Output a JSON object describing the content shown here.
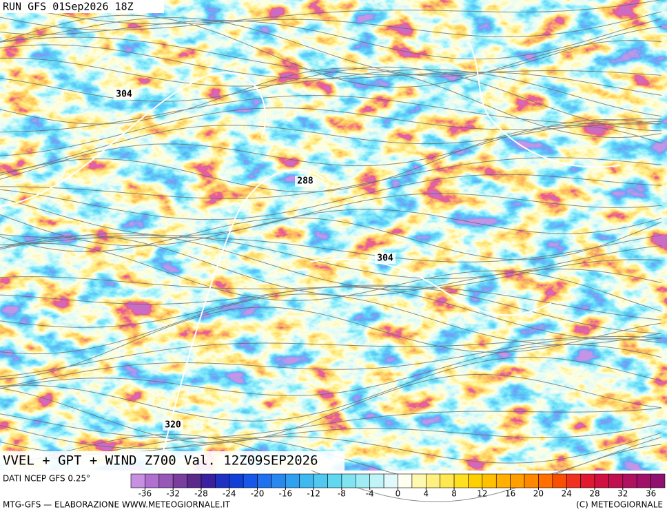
{
  "header": {
    "run": "RUN GFS 01Sep2026 18Z"
  },
  "map": {
    "contour_labels": [
      "304",
      "288",
      "304",
      "320"
    ],
    "title": "VVEL + GPT + WIND Z700 Val. 12Z09SEP2026"
  },
  "legend": {
    "source": "DATI NCEP GFS 0.25°",
    "range": [
      -38,
      38
    ],
    "ticks": [
      -36,
      -32,
      -28,
      -24,
      -20,
      -16,
      -12,
      -8,
      -4,
      0,
      4,
      8,
      12,
      16,
      20,
      24,
      28,
      32,
      36
    ],
    "colors": [
      "#c890e0",
      "#b070d0",
      "#9858b8",
      "#7a3f9e",
      "#5a2a8a",
      "#3a20a0",
      "#2030c0",
      "#1040d8",
      "#1858e8",
      "#2070f0",
      "#2888f0",
      "#30a0f0",
      "#40b8f0",
      "#50c8f0",
      "#60d8f0",
      "#80e4f0",
      "#a0ecf4",
      "#c0f4f8",
      "#e0fafc",
      "#fffff0",
      "#fff8b0",
      "#fff080",
      "#ffe850",
      "#ffe020",
      "#ffd000",
      "#ffc000",
      "#ffb000",
      "#ffa000",
      "#ff8800",
      "#ff7000",
      "#f85000",
      "#f03020",
      "#e01830",
      "#d01040",
      "#c01050",
      "#b01060",
      "#a01068",
      "#901070"
    ]
  },
  "footer": {
    "left": "MTG-GFS — ELABORAZIONE WWW.METEOGIORNALE.IT",
    "right": "(C) METEOGIORNALE"
  }
}
